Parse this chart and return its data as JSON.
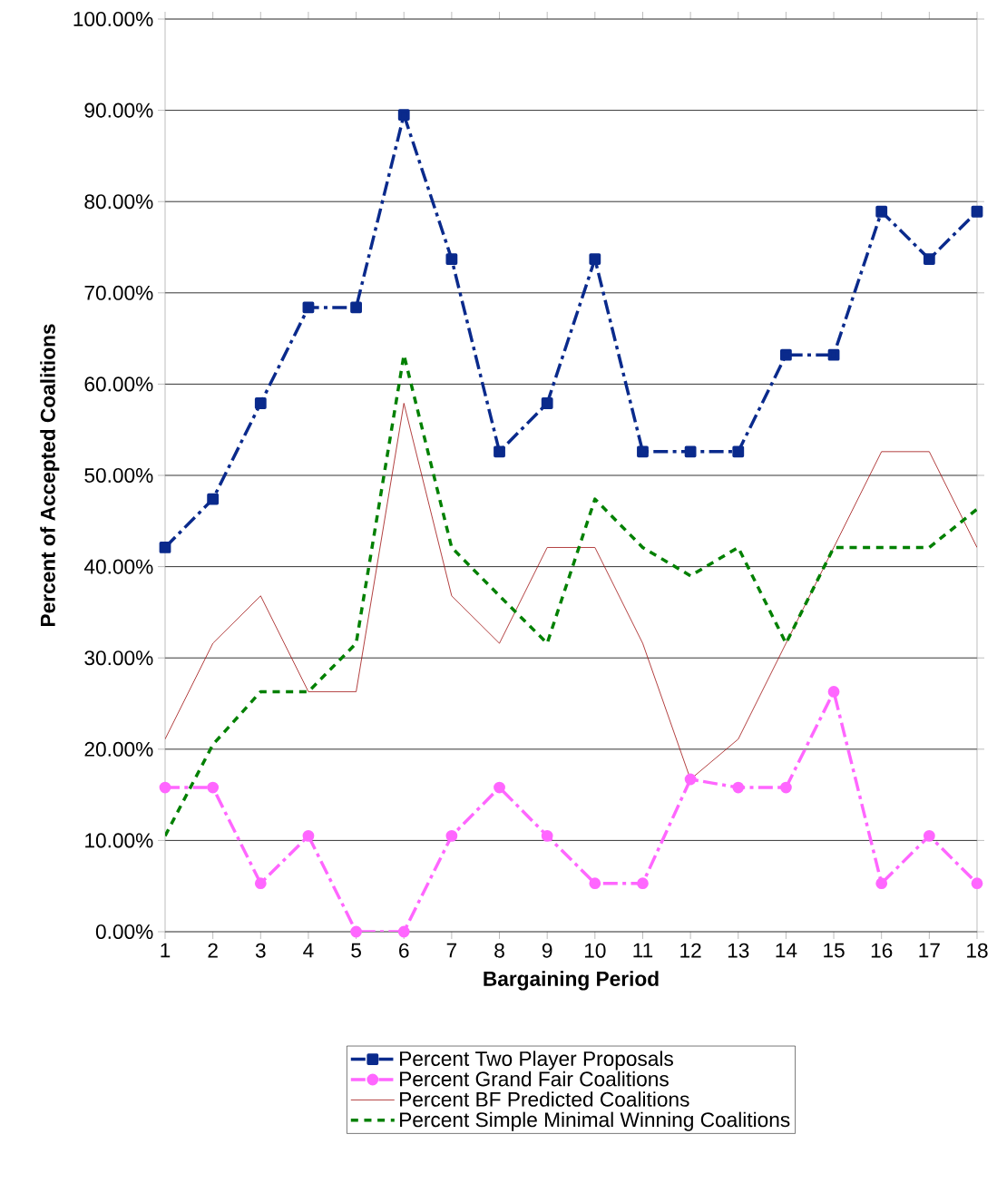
{
  "chart_data": {
    "type": "line",
    "xlabel": "Bargaining Period",
    "ylabel": "Percent of Accepted Coalitions",
    "x": [
      1,
      2,
      3,
      4,
      5,
      6,
      7,
      8,
      9,
      10,
      11,
      12,
      13,
      14,
      15,
      16,
      17,
      18
    ],
    "xlim": [
      1,
      18
    ],
    "xticks": [
      1,
      2,
      3,
      4,
      5,
      6,
      7,
      8,
      9,
      10,
      11,
      12,
      13,
      14,
      15,
      16,
      17,
      18
    ],
    "ylim": [
      0,
      100
    ],
    "yticks": [
      {
        "value": 0,
        "label": "0.00%"
      },
      {
        "value": 10,
        "label": "10.00%"
      },
      {
        "value": 20,
        "label": "20.00%"
      },
      {
        "value": 30,
        "label": "30.00%"
      },
      {
        "value": 40,
        "label": "40.00%"
      },
      {
        "value": 50,
        "label": "50.00%"
      },
      {
        "value": 60,
        "label": "60.00%"
      },
      {
        "value": 70,
        "label": "70.00%"
      },
      {
        "value": 80,
        "label": "80.00%"
      },
      {
        "value": 90,
        "label": "90.00%"
      },
      {
        "value": 100,
        "label": "100.00%"
      }
    ],
    "grid": "y",
    "legend": "bottom",
    "series": [
      {
        "name": "Percent Two Player Proposals",
        "color": "#0a2a8c",
        "marker": "square",
        "line_style": "dashdot",
        "values": [
          42.1,
          47.4,
          57.9,
          68.4,
          68.4,
          89.5,
          73.7,
          52.6,
          57.9,
          73.7,
          52.6,
          52.6,
          52.6,
          63.2,
          63.2,
          78.9,
          73.7,
          78.9
        ]
      },
      {
        "name": "Percent Grand Fair Coalitions",
        "color": "#ff66ff",
        "marker": "circle",
        "line_style": "dashdot",
        "values": [
          15.8,
          15.8,
          5.3,
          10.5,
          0,
          0,
          10.5,
          15.8,
          10.5,
          5.3,
          5.3,
          16.7,
          15.8,
          15.8,
          26.3,
          5.3,
          10.5,
          5.3
        ]
      },
      {
        "name": "Percent BF Predicted Coalitions",
        "color": "#a01010",
        "marker": "none",
        "line_style": "solid",
        "values": [
          21.1,
          31.6,
          36.8,
          26.3,
          26.3,
          57.9,
          36.8,
          31.6,
          42.1,
          42.1,
          31.6,
          16.7,
          21.1,
          31.6,
          42.1,
          52.6,
          52.6,
          42.1
        ]
      },
      {
        "name": "Percent Simple Minimal Winning Coalitions",
        "color": "#008000",
        "marker": "none",
        "line_style": "dashed",
        "values": [
          10.5,
          20.5,
          26.3,
          26.3,
          31.6,
          63.2,
          42.1,
          36.8,
          31.6,
          47.4,
          42.1,
          39.0,
          42.1,
          31.6,
          42.1,
          42.1,
          42.1,
          46.3
        ]
      }
    ]
  }
}
